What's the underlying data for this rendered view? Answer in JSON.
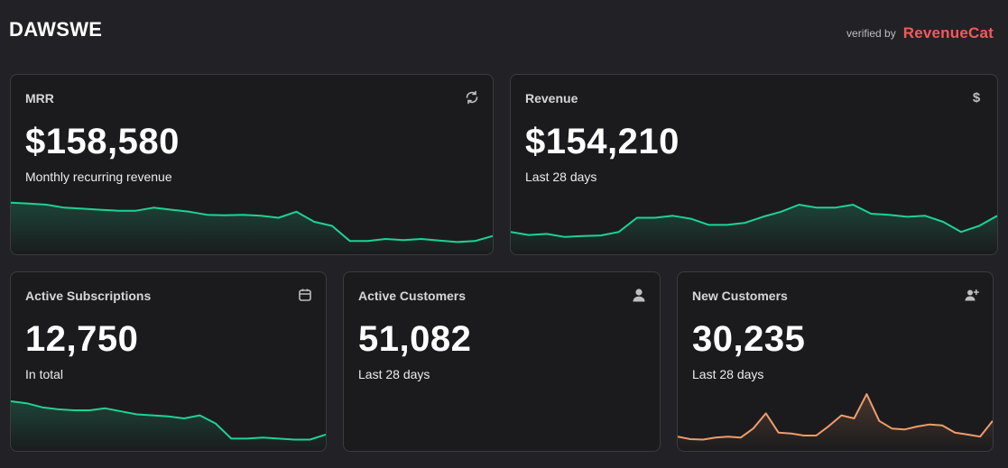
{
  "header": {
    "app_title": "DAWSWE",
    "verified_label": "verified by",
    "brand": "RevenueCat"
  },
  "colors": {
    "background": "#222226",
    "card": "#1b1b1d",
    "green_line": "#1ed293",
    "orange_line": "#ee9c6c",
    "brand": "#f25a5a"
  },
  "cards": [
    {
      "label": "MRR",
      "value": "$158,580",
      "caption": "Monthly recurring revenue",
      "icon": "refresh-icon",
      "trend": [
        0.88,
        0.86,
        0.84,
        0.78,
        0.76,
        0.74,
        0.72,
        0.72,
        0.78,
        0.74,
        0.7,
        0.64,
        0.63,
        0.64,
        0.62,
        0.58,
        0.7,
        0.5,
        0.42,
        0.12,
        0.12,
        0.16,
        0.14,
        0.16,
        0.13,
        0.1,
        0.12,
        0.22
      ]
    },
    {
      "label": "Revenue",
      "value": "$154,210",
      "caption": "Last 28 days",
      "icon": "dollar-icon",
      "trend": [
        0.3,
        0.24,
        0.26,
        0.2,
        0.22,
        0.23,
        0.3,
        0.58,
        0.58,
        0.62,
        0.56,
        0.44,
        0.44,
        0.48,
        0.6,
        0.7,
        0.84,
        0.78,
        0.78,
        0.84,
        0.66,
        0.64,
        0.6,
        0.62,
        0.5,
        0.3,
        0.42,
        0.62
      ]
    },
    {
      "label": "Active Subscriptions",
      "value": "12,750",
      "caption": "In total",
      "icon": "calendar-icon",
      "trend": [
        0.84,
        0.8,
        0.72,
        0.68,
        0.66,
        0.66,
        0.7,
        0.64,
        0.58,
        0.56,
        0.54,
        0.5,
        0.56,
        0.4,
        0.1,
        0.1,
        0.12,
        0.1,
        0.08,
        0.08,
        0.18
      ]
    },
    {
      "label": "Active Customers",
      "value": "51,082",
      "caption": "Last 28 days",
      "icon": "user-icon",
      "trend": []
    },
    {
      "label": "New Customers",
      "value": "30,235",
      "caption": "Last 28 days",
      "icon": "user-plus-icon",
      "trend": [
        0.14,
        0.09,
        0.08,
        0.12,
        0.14,
        0.12,
        0.3,
        0.6,
        0.22,
        0.2,
        0.16,
        0.16,
        0.35,
        0.56,
        0.5,
        0.98,
        0.45,
        0.3,
        0.28,
        0.34,
        0.38,
        0.36,
        0.22,
        0.18,
        0.14,
        0.45
      ]
    }
  ]
}
